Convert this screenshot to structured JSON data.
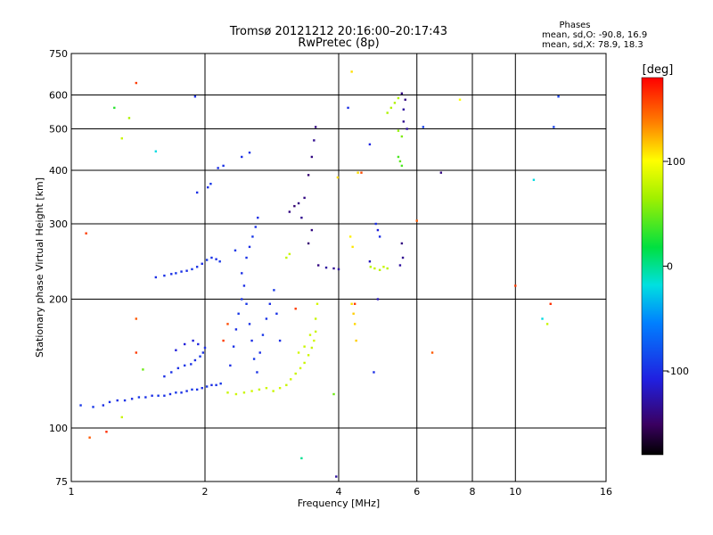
{
  "chart_data": {
    "type": "scatter",
    "title": "Tromsø 20121212 20:16:00–20:17:43",
    "subtitle": "RwPretec (8p)",
    "xlabel": "Frequency [MHz]",
    "ylabel": "Stationary phase Virtual Height [km]",
    "x_scale": "log",
    "y_scale": "log",
    "xlim": [
      1,
      16
    ],
    "ylim": [
      75,
      750
    ],
    "x_ticks": [
      1,
      2,
      4,
      6,
      8,
      10,
      16
    ],
    "x_tick_labels": [
      "1",
      "2",
      "4",
      "6",
      "8",
      "10",
      "16"
    ],
    "x_grid": [
      2,
      4,
      6,
      8,
      10
    ],
    "y_ticks": [
      75,
      100,
      200,
      300,
      400,
      500,
      600,
      750
    ],
    "y_tick_labels": [
      "75",
      "100",
      "200",
      "300",
      "400",
      "500",
      "600",
      "750"
    ],
    "y_grid": [
      100,
      200,
      300,
      400,
      500,
      600
    ],
    "grid": true,
    "stats": {
      "heading": "Phases",
      "line_o": "mean, sd,O: -90.8, 16.9",
      "line_x": "mean, sd,X:  78.9, 18.3"
    },
    "colorbar": {
      "label": "[deg]",
      "min": -180,
      "max": 180,
      "ticks": [
        100,
        0,
        -100
      ],
      "tick_labels": [
        "100",
        "0",
        "-100"
      ]
    },
    "series": [
      {
        "name": "",
        "points": [
          [
            1.05,
            113,
            -95
          ],
          [
            1.12,
            112,
            -95
          ],
          [
            1.18,
            113,
            -100
          ],
          [
            1.22,
            115,
            -98
          ],
          [
            1.27,
            116,
            -100
          ],
          [
            1.32,
            116,
            -98
          ],
          [
            1.37,
            117,
            -100
          ],
          [
            1.42,
            118,
            -95
          ],
          [
            1.47,
            118,
            -98
          ],
          [
            1.52,
            119,
            -100
          ],
          [
            1.57,
            119,
            -95
          ],
          [
            1.62,
            119,
            -98
          ],
          [
            1.67,
            120,
            -100
          ],
          [
            1.72,
            121,
            -95
          ],
          [
            1.77,
            121,
            -98
          ],
          [
            1.82,
            122,
            -100
          ],
          [
            1.87,
            123,
            -95
          ],
          [
            1.92,
            123,
            -98
          ],
          [
            1.97,
            124,
            -100
          ],
          [
            2.02,
            125,
            -95
          ],
          [
            2.07,
            126,
            -100
          ],
          [
            2.12,
            126,
            -98
          ],
          [
            2.17,
            127,
            -95
          ],
          [
            1.55,
            225,
            -100
          ],
          [
            1.62,
            227,
            -98
          ],
          [
            1.68,
            229,
            -100
          ],
          [
            1.72,
            230,
            -95
          ],
          [
            1.77,
            232,
            -98
          ],
          [
            1.82,
            233,
            -100
          ],
          [
            1.87,
            235,
            -95
          ],
          [
            1.92,
            238,
            -98
          ],
          [
            1.97,
            242,
            -100
          ],
          [
            2.02,
            247,
            -95
          ],
          [
            2.07,
            250,
            -98
          ],
          [
            2.12,
            248,
            -100
          ],
          [
            2.16,
            245,
            -95
          ],
          [
            1.62,
            132,
            -100
          ],
          [
            1.68,
            135,
            -98
          ],
          [
            1.74,
            138,
            -100
          ],
          [
            1.8,
            140,
            -95
          ],
          [
            1.86,
            141,
            -98
          ],
          [
            1.9,
            144,
            -100
          ],
          [
            1.95,
            147,
            -95
          ],
          [
            1.98,
            150,
            -98
          ],
          [
            2.0,
            154,
            -100
          ],
          [
            1.72,
            152,
            -110
          ],
          [
            1.8,
            157,
            -110
          ],
          [
            1.88,
            160,
            -110
          ],
          [
            1.93,
            157,
            -105
          ],
          [
            2.28,
            140,
            -100
          ],
          [
            2.32,
            155,
            -98
          ],
          [
            2.35,
            170,
            -100
          ],
          [
            2.38,
            185,
            -95
          ],
          [
            2.42,
            200,
            -98
          ],
          [
            2.45,
            215,
            -100
          ],
          [
            2.48,
            195,
            -95
          ],
          [
            2.52,
            175,
            -98
          ],
          [
            2.55,
            160,
            -100
          ],
          [
            2.58,
            145,
            -95
          ],
          [
            2.62,
            135,
            -98
          ],
          [
            2.66,
            150,
            -100
          ],
          [
            2.7,
            165,
            -95
          ],
          [
            2.75,
            180,
            -98
          ],
          [
            2.8,
            195,
            -100
          ],
          [
            2.86,
            210,
            -95
          ],
          [
            2.9,
            185,
            -98
          ],
          [
            2.95,
            160,
            -100
          ],
          [
            2.42,
            230,
            -100
          ],
          [
            2.48,
            250,
            -98
          ],
          [
            2.52,
            265,
            -100
          ],
          [
            2.56,
            280,
            -95
          ],
          [
            2.6,
            295,
            -98
          ],
          [
            2.63,
            310,
            -100
          ],
          [
            2.34,
            260,
            -95
          ],
          [
            2.14,
            405,
            -100
          ],
          [
            2.2,
            410,
            -98
          ],
          [
            2.03,
            365,
            -100
          ],
          [
            2.06,
            372,
            -95
          ],
          [
            1.92,
            355,
            -100
          ],
          [
            2.42,
            430,
            -100
          ],
          [
            2.52,
            440,
            -98
          ],
          [
            2.25,
            121,
            80
          ],
          [
            2.35,
            120,
            82
          ],
          [
            2.45,
            121,
            80
          ],
          [
            2.55,
            122,
            84
          ],
          [
            2.65,
            123,
            80
          ],
          [
            2.75,
            124,
            82
          ],
          [
            2.85,
            122,
            80
          ],
          [
            2.95,
            124,
            84
          ],
          [
            3.05,
            126,
            80
          ],
          [
            3.12,
            130,
            82
          ],
          [
            3.2,
            134,
            80
          ],
          [
            3.28,
            138,
            84
          ],
          [
            3.35,
            142,
            80
          ],
          [
            3.42,
            148,
            82
          ],
          [
            3.48,
            154,
            80
          ],
          [
            3.52,
            160,
            84
          ],
          [
            3.55,
            168,
            80
          ],
          [
            3.45,
            165,
            82
          ],
          [
            3.35,
            155,
            80
          ],
          [
            3.25,
            150,
            84
          ],
          [
            3.55,
            180,
            80
          ],
          [
            3.58,
            195,
            85
          ],
          [
            3.05,
            250,
            78
          ],
          [
            3.1,
            255,
            80
          ],
          [
            3.1,
            320,
            -140
          ],
          [
            3.18,
            330,
            -145
          ],
          [
            3.25,
            335,
            -140
          ],
          [
            3.3,
            310,
            -135
          ],
          [
            3.35,
            345,
            -140
          ],
          [
            3.42,
            390,
            -145
          ],
          [
            3.48,
            430,
            -140
          ],
          [
            3.52,
            470,
            -135
          ],
          [
            3.55,
            505,
            -140
          ],
          [
            3.48,
            290,
            -140
          ],
          [
            3.42,
            270,
            -145
          ],
          [
            3.6,
            240,
            -140
          ],
          [
            3.75,
            237,
            -130
          ],
          [
            3.9,
            236,
            -135
          ],
          [
            4.0,
            235,
            -130
          ],
          [
            4.28,
            195,
            110
          ],
          [
            4.32,
            185,
            115
          ],
          [
            4.35,
            175,
            112
          ],
          [
            4.38,
            160,
            115
          ],
          [
            4.25,
            280,
            105
          ],
          [
            4.3,
            265,
            108
          ],
          [
            4.42,
            395,
            110
          ],
          [
            3.98,
            385,
            112
          ],
          [
            4.28,
            680,
            110
          ],
          [
            4.72,
            238,
            75
          ],
          [
            4.82,
            236,
            80
          ],
          [
            4.95,
            234,
            75
          ],
          [
            5.05,
            238,
            80
          ],
          [
            5.15,
            236,
            75
          ],
          [
            5.45,
            430,
            40
          ],
          [
            5.5,
            420,
            45
          ],
          [
            5.55,
            410,
            40
          ],
          [
            5.15,
            545,
            70
          ],
          [
            5.25,
            560,
            72
          ],
          [
            5.35,
            575,
            70
          ],
          [
            5.45,
            590,
            72
          ],
          [
            5.55,
            605,
            -140
          ],
          [
            5.65,
            585,
            -140
          ],
          [
            5.6,
            555,
            -130
          ],
          [
            5.6,
            520,
            -135
          ],
          [
            5.7,
            500,
            -130
          ],
          [
            5.45,
            495,
            60
          ],
          [
            5.55,
            480,
            55
          ],
          [
            5.55,
            270,
            -140
          ],
          [
            5.58,
            250,
            -135
          ],
          [
            5.5,
            240,
            -130
          ],
          [
            4.85,
            300,
            -100
          ],
          [
            4.9,
            290,
            -110
          ],
          [
            4.95,
            280,
            -100
          ],
          [
            4.2,
            560,
            -100
          ],
          [
            4.7,
            460,
            -105
          ],
          [
            4.7,
            245,
            -120
          ],
          [
            4.9,
            200,
            -120
          ],
          [
            4.8,
            135,
            -100
          ],
          [
            6.2,
            505,
            -90
          ],
          [
            6.8,
            395,
            -140
          ],
          [
            1.08,
            285,
            160
          ],
          [
            1.4,
            640,
            160
          ],
          [
            1.25,
            560,
            30
          ],
          [
            1.35,
            530,
            70
          ],
          [
            1.3,
            475,
            80
          ],
          [
            1.55,
            443,
            -20
          ],
          [
            1.4,
            180,
            150
          ],
          [
            1.4,
            150,
            160
          ],
          [
            1.45,
            137,
            50
          ],
          [
            1.3,
            106,
            80
          ],
          [
            1.2,
            98,
            165
          ],
          [
            1.1,
            95,
            150
          ],
          [
            1.9,
            595,
            -100
          ],
          [
            2.2,
            160,
            160
          ],
          [
            2.25,
            175,
            155
          ],
          [
            3.2,
            190,
            160
          ],
          [
            3.3,
            85,
            0
          ],
          [
            3.9,
            120,
            50
          ],
          [
            4.35,
            195,
            160
          ],
          [
            4.5,
            395,
            155
          ],
          [
            6.0,
            305,
            150
          ],
          [
            6.5,
            150,
            150
          ],
          [
            7.5,
            585,
            100
          ],
          [
            10.0,
            215,
            160
          ],
          [
            11.0,
            380,
            -20
          ],
          [
            11.5,
            180,
            -20
          ],
          [
            11.8,
            175,
            80
          ],
          [
            12.0,
            195,
            165
          ],
          [
            12.2,
            505,
            -90
          ],
          [
            12.5,
            595,
            -90
          ],
          [
            3.95,
            77,
            -130
          ]
        ]
      }
    ]
  }
}
